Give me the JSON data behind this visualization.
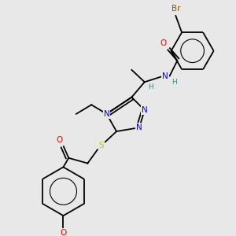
{
  "bg_color": "#e8e8e8",
  "atom_colors": {
    "Br": "#a05000",
    "O": "#ff0000",
    "N": "#0000ff",
    "S": "#c8c800",
    "C": "#000000",
    "H": "#408080"
  }
}
